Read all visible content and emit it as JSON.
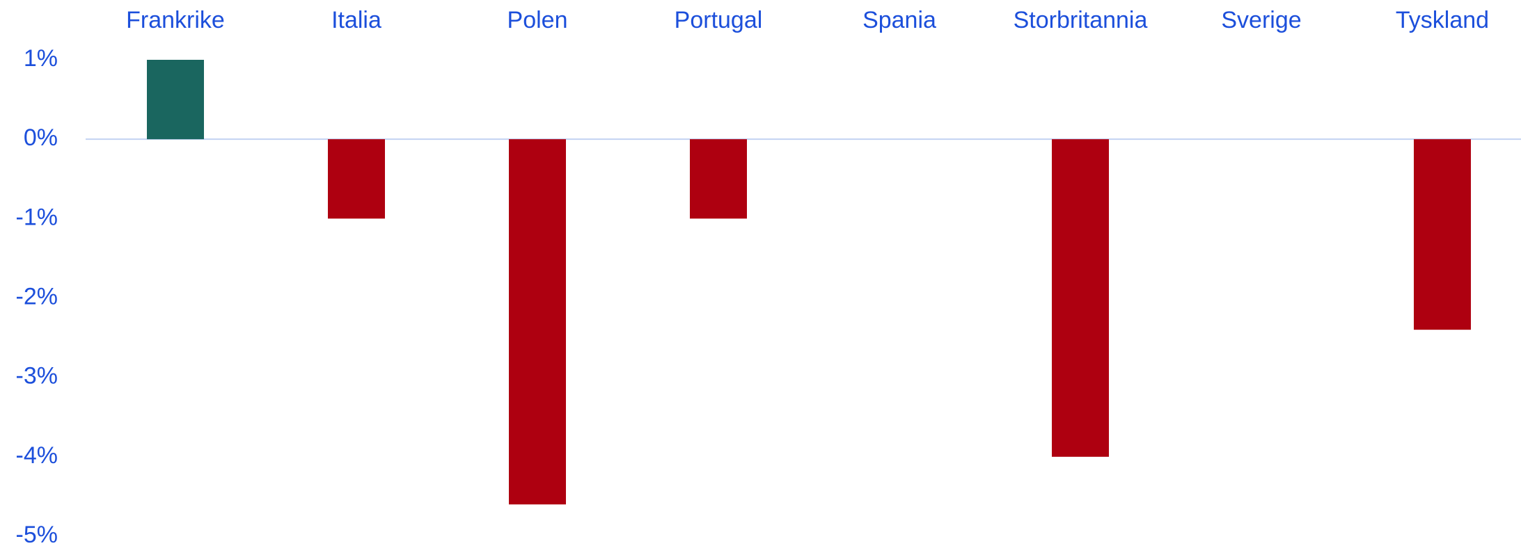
{
  "chart_data": {
    "type": "bar",
    "categories": [
      "Frankrike",
      "Italia",
      "Polen",
      "Portugal",
      "Spania",
      "Storbritannia",
      "Sverige",
      "Tyskland"
    ],
    "values": [
      1,
      -1,
      -4.6,
      -1,
      0,
      -4,
      0,
      -2.4
    ],
    "colors": [
      "#1a665f",
      "#ae0010",
      "#ae0010",
      "#ae0010",
      "#ae0010",
      "#ae0010",
      "#ae0010",
      "#ae0010"
    ],
    "ylim": [
      -5,
      1
    ],
    "yticks": [
      {
        "value": 1,
        "label": "1%"
      },
      {
        "value": 0,
        "label": "0%"
      },
      {
        "value": -1,
        "label": "-1%"
      },
      {
        "value": -2,
        "label": "-2%"
      },
      {
        "value": -3,
        "label": "-3%"
      },
      {
        "value": -4,
        "label": "-4%"
      },
      {
        "value": -5,
        "label": "-5%"
      }
    ],
    "grid": false
  }
}
